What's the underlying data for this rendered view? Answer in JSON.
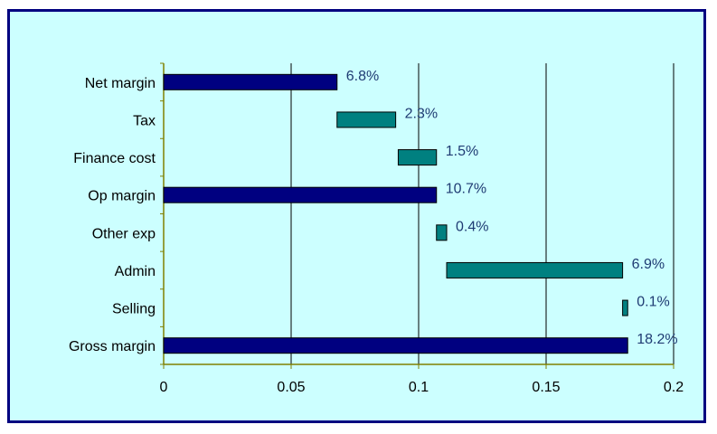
{
  "chart_data": {
    "type": "bar",
    "orientation": "horizontal",
    "subtype": "waterfall",
    "categories": [
      "Net margin",
      "Tax",
      "Finance cost",
      "Op margin",
      "Other exp",
      "Admin",
      "Selling",
      "Gross margin"
    ],
    "bars": [
      {
        "category": "Net margin",
        "start": 0,
        "end": 0.068,
        "label": "6.8%",
        "kind": "total"
      },
      {
        "category": "Tax",
        "start": 0.068,
        "end": 0.091,
        "label": "2.3%",
        "kind": "step"
      },
      {
        "category": "Finance cost",
        "start": 0.092,
        "end": 0.107,
        "label": "1.5%",
        "kind": "step"
      },
      {
        "category": "Op margin",
        "start": 0,
        "end": 0.107,
        "label": "10.7%",
        "kind": "total"
      },
      {
        "category": "Other exp",
        "start": 0.107,
        "end": 0.111,
        "label": "0.4%",
        "kind": "step"
      },
      {
        "category": "Admin",
        "start": 0.111,
        "end": 0.18,
        "label": "6.9%",
        "kind": "step"
      },
      {
        "category": "Selling",
        "start": 0.18,
        "end": 0.182,
        "label": "0.1%",
        "kind": "step"
      },
      {
        "category": "Gross margin",
        "start": 0,
        "end": 0.182,
        "label": "18.2%",
        "kind": "total"
      }
    ],
    "x_ticks": [
      "0",
      "0.05",
      "0.1",
      "0.15",
      "0.2"
    ],
    "x_tick_values": [
      0,
      0.05,
      0.1,
      0.15,
      0.2
    ],
    "xlim": [
      0,
      0.2
    ],
    "title": "",
    "xlabel": "",
    "ylabel": "",
    "grid": "vertical major gridlines",
    "legend": "none",
    "colors": {
      "total_bar": "#000080",
      "step_bar": "#008080",
      "background": "#ccffff",
      "frame_border": "#000080",
      "data_label": "#1f3b73",
      "axis": "#808000",
      "gridline": "#000000"
    }
  }
}
